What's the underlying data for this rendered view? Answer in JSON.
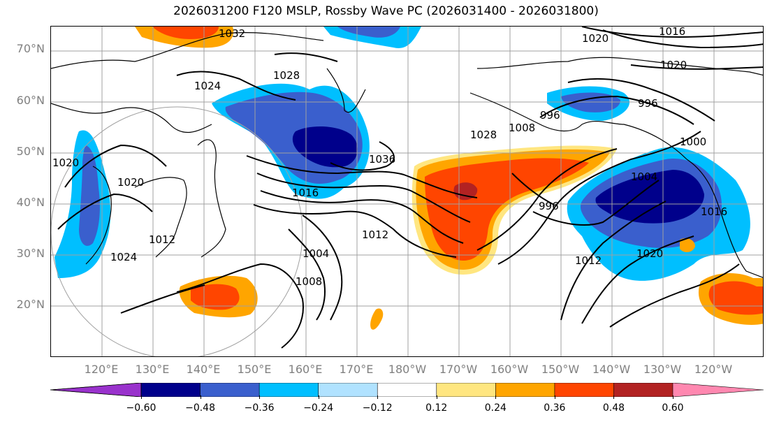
{
  "title": "2026031200 F120 MSLP, Rossby Wave PC (2026031400 - 2026031800)",
  "lat_labels": [
    "70°N",
    "60°N",
    "50°N",
    "40°N",
    "30°N",
    "20°N"
  ],
  "lon_labels": [
    "120°E",
    "130°E",
    "140°E",
    "150°E",
    "160°E",
    "170°E",
    "180°W",
    "170°W",
    "160°W",
    "150°W",
    "140°W",
    "130°W",
    "120°W"
  ],
  "colorbar": {
    "ticks": [
      "−0.60",
      "−0.48",
      "−0.36",
      "−0.24",
      "−0.12",
      "0.12",
      "0.24",
      "0.36",
      "0.48",
      "0.60"
    ],
    "colors": [
      "#9932cc",
      "#00008b",
      "#3a5fcd",
      "#00bfff",
      "#b0e2ff",
      "#ffffff",
      "#ffe680",
      "#ffa500",
      "#ff4500",
      "#b22222",
      "#ff88b0"
    ]
  },
  "isobars": {
    "labels": [
      "1032",
      "1020",
      "1016",
      "1028",
      "1020",
      "1024",
      "996",
      "996",
      "1000",
      "1020",
      "1036",
      "1028",
      "1008",
      "1016",
      "1012",
      "1004",
      "1008",
      "996",
      "1004",
      "1016",
      "1012",
      "1020",
      "1024",
      "1020",
      "1012"
    ]
  },
  "colors": {
    "dark_blue": "#00008b",
    "mid_blue": "#3a5fcd",
    "sky_blue": "#00bfff",
    "light_blue": "#b0e2ff",
    "yellow": "#ffe680",
    "orange": "#ffa500",
    "red_orange": "#ff4500",
    "dark_red": "#b22222"
  }
}
